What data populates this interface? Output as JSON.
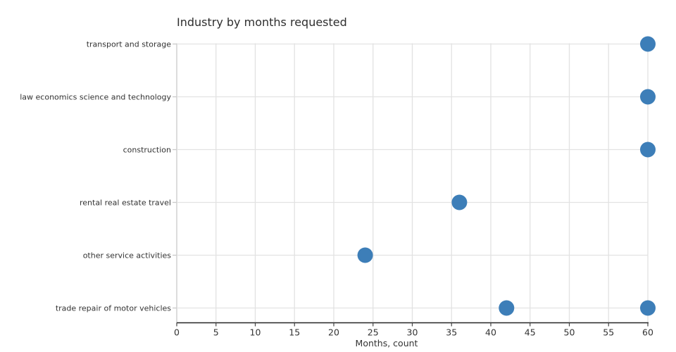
{
  "chart_data": {
    "type": "scatter",
    "title": "Industry by months requested",
    "xlabel": "Months, count",
    "ylabel": "",
    "categories": [
      "transport and storage",
      "law economics science and technology",
      "construction",
      "rental real estate travel",
      "other service activities",
      "trade repair of motor vehicles"
    ],
    "points": [
      {
        "category": "transport and storage",
        "x": 60
      },
      {
        "category": "law economics science and technology",
        "x": 60
      },
      {
        "category": "construction",
        "x": 60
      },
      {
        "category": "rental real estate travel",
        "x": 36
      },
      {
        "category": "other service activities",
        "x": 24
      },
      {
        "category": "trade repair of motor vehicles",
        "x": 42
      },
      {
        "category": "trade repair of motor vehicles",
        "x": 60
      }
    ],
    "xlim": [
      0,
      60
    ],
    "xticks": [
      0,
      5,
      10,
      15,
      20,
      25,
      30,
      35,
      40,
      45,
      50,
      55,
      60
    ],
    "grid": true,
    "legend": false,
    "colors": {
      "dot": "#3d7eb8",
      "grid": "#e2e2e2",
      "zero_line": "#c9c9c9",
      "y_tick": "#c9c9c9",
      "axis_line": "#262626",
      "x_tick": "#444444",
      "tick_label": "#333333",
      "category_label": "#333333"
    }
  }
}
